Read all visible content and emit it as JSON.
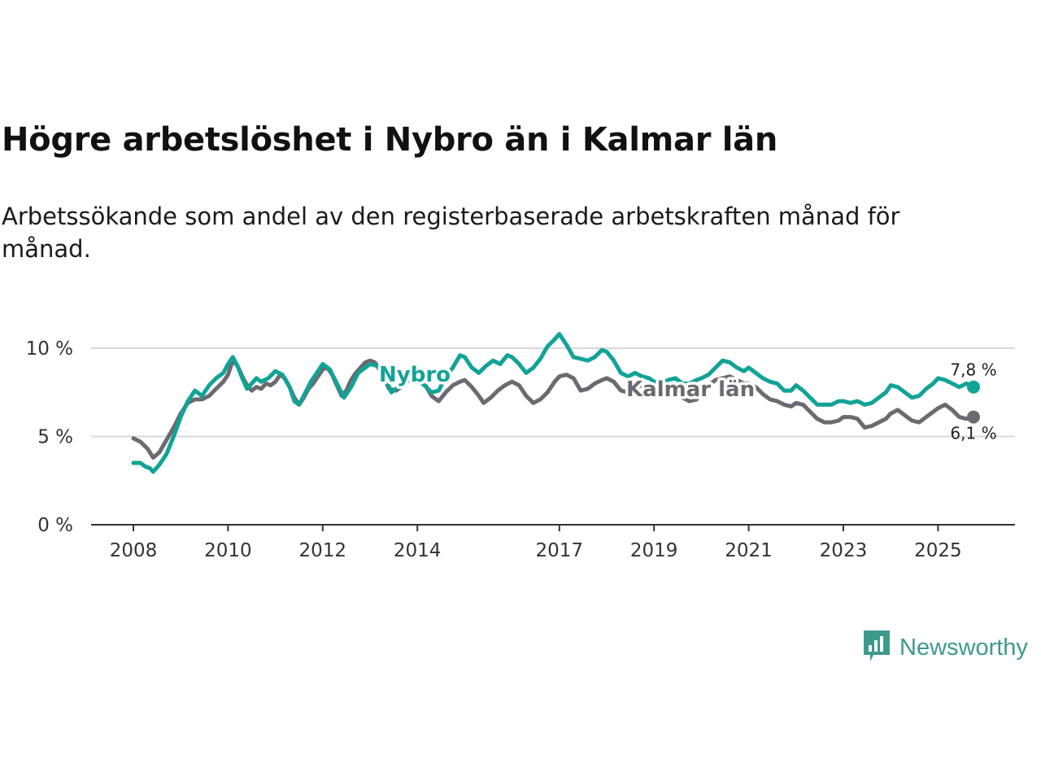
{
  "header": {
    "title": "Högre arbetslöshet i Nybro än i Kalmar län",
    "subtitle": "Arbetssökande som andel av den registerbaserade arbetskraften månad för månad."
  },
  "brand": {
    "name": "Newsworthy",
    "icon": "newsworthy-logo-icon",
    "color": "#3c9a8d"
  },
  "chart_data": {
    "type": "line",
    "title": "Högre arbetslöshet i Nybro än i Kalmar län",
    "xlabel": "",
    "ylabel": "",
    "xlim": [
      2008.0,
      2026.5
    ],
    "ylim": [
      0,
      10
    ],
    "y_ticks": [
      0,
      5,
      10
    ],
    "y_tick_labels": [
      "0 %",
      "5 %",
      "10 %"
    ],
    "x_ticks": [
      2008,
      2010,
      2012,
      2014,
      2017,
      2019,
      2021,
      2023,
      2025
    ],
    "x_tick_labels": [
      "2008",
      "2010",
      "2012",
      "2014",
      "2017",
      "2019",
      "2021",
      "2023",
      "2025"
    ],
    "grid": true,
    "series": [
      {
        "name": "Kalmar län",
        "color": "#6b6a70",
        "end_label": "6,1 %",
        "points": [
          [
            2008.0,
            4.9
          ],
          [
            2008.15,
            4.7
          ],
          [
            2008.3,
            4.3
          ],
          [
            2008.42,
            3.8
          ],
          [
            2008.55,
            4.1
          ],
          [
            2008.7,
            4.8
          ],
          [
            2008.85,
            5.5
          ],
          [
            2009.0,
            6.3
          ],
          [
            2009.15,
            6.9
          ],
          [
            2009.3,
            7.1
          ],
          [
            2009.45,
            7.1
          ],
          [
            2009.6,
            7.3
          ],
          [
            2009.75,
            7.7
          ],
          [
            2009.9,
            8.1
          ],
          [
            2010.0,
            8.5
          ],
          [
            2010.1,
            9.3
          ],
          [
            2010.2,
            9.0
          ],
          [
            2010.3,
            8.4
          ],
          [
            2010.4,
            7.9
          ],
          [
            2010.5,
            7.6
          ],
          [
            2010.6,
            7.8
          ],
          [
            2010.7,
            7.7
          ],
          [
            2010.8,
            8.0
          ],
          [
            2010.9,
            7.9
          ],
          [
            2011.0,
            8.1
          ],
          [
            2011.1,
            8.5
          ],
          [
            2011.2,
            8.3
          ],
          [
            2011.3,
            7.8
          ],
          [
            2011.4,
            7.2
          ],
          [
            2011.5,
            6.8
          ],
          [
            2011.6,
            7.2
          ],
          [
            2011.7,
            7.7
          ],
          [
            2011.8,
            8.0
          ],
          [
            2011.9,
            8.4
          ],
          [
            2012.0,
            8.8
          ],
          [
            2012.1,
            8.9
          ],
          [
            2012.2,
            8.5
          ],
          [
            2012.3,
            7.9
          ],
          [
            2012.4,
            7.3
          ],
          [
            2012.5,
            7.6
          ],
          [
            2012.6,
            8.2
          ],
          [
            2012.7,
            8.6
          ],
          [
            2012.8,
            8.9
          ],
          [
            2012.9,
            9.2
          ],
          [
            2013.0,
            9.3
          ],
          [
            2013.1,
            9.2
          ],
          [
            2013.25,
            8.6
          ],
          [
            2013.4,
            7.7
          ],
          [
            2013.55,
            7.6
          ],
          [
            2013.7,
            7.9
          ],
          [
            2013.85,
            8.3
          ],
          [
            2014.0,
            8.4
          ],
          [
            2014.15,
            8.0
          ],
          [
            2014.3,
            7.3
          ],
          [
            2014.45,
            7.0
          ],
          [
            2014.6,
            7.5
          ],
          [
            2014.75,
            7.9
          ],
          [
            2014.9,
            8.1
          ],
          [
            2015.0,
            8.2
          ],
          [
            2015.15,
            7.8
          ],
          [
            2015.3,
            7.3
          ],
          [
            2015.4,
            6.9
          ],
          [
            2015.55,
            7.2
          ],
          [
            2015.7,
            7.6
          ],
          [
            2015.85,
            7.9
          ],
          [
            2016.0,
            8.1
          ],
          [
            2016.15,
            7.9
          ],
          [
            2016.3,
            7.3
          ],
          [
            2016.45,
            6.9
          ],
          [
            2016.6,
            7.1
          ],
          [
            2016.75,
            7.5
          ],
          [
            2016.9,
            8.1
          ],
          [
            2017.0,
            8.4
          ],
          [
            2017.15,
            8.5
          ],
          [
            2017.3,
            8.3
          ],
          [
            2017.45,
            7.6
          ],
          [
            2017.6,
            7.7
          ],
          [
            2017.75,
            8.0
          ],
          [
            2017.9,
            8.2
          ],
          [
            2018.0,
            8.3
          ],
          [
            2018.15,
            8.1
          ],
          [
            2018.3,
            7.6
          ],
          [
            2018.45,
            7.5
          ],
          [
            2018.6,
            7.8
          ],
          [
            2018.75,
            7.9
          ],
          [
            2018.9,
            7.7
          ],
          [
            2019.0,
            7.4
          ],
          [
            2019.15,
            7.3
          ],
          [
            2019.3,
            7.5
          ],
          [
            2019.45,
            7.6
          ],
          [
            2019.6,
            7.2
          ],
          [
            2019.75,
            7.0
          ],
          [
            2019.9,
            7.1
          ],
          [
            2020.0,
            7.5
          ],
          [
            2020.15,
            7.9
          ],
          [
            2020.3,
            8.2
          ],
          [
            2020.45,
            8.3
          ],
          [
            2020.6,
            8.4
          ],
          [
            2020.75,
            8.2
          ],
          [
            2020.9,
            8.0
          ],
          [
            2021.0,
            8.0
          ],
          [
            2021.15,
            7.8
          ],
          [
            2021.3,
            7.4
          ],
          [
            2021.45,
            7.1
          ],
          [
            2021.6,
            7.0
          ],
          [
            2021.75,
            6.8
          ],
          [
            2021.9,
            6.7
          ],
          [
            2022.0,
            6.9
          ],
          [
            2022.15,
            6.8
          ],
          [
            2022.3,
            6.4
          ],
          [
            2022.45,
            6.0
          ],
          [
            2022.6,
            5.8
          ],
          [
            2022.75,
            5.8
          ],
          [
            2022.9,
            5.9
          ],
          [
            2023.0,
            6.1
          ],
          [
            2023.15,
            6.1
          ],
          [
            2023.3,
            6.0
          ],
          [
            2023.45,
            5.5
          ],
          [
            2023.6,
            5.6
          ],
          [
            2023.75,
            5.8
          ],
          [
            2023.9,
            6.0
          ],
          [
            2024.0,
            6.3
          ],
          [
            2024.15,
            6.5
          ],
          [
            2024.3,
            6.2
          ],
          [
            2024.45,
            5.9
          ],
          [
            2024.6,
            5.8
          ],
          [
            2024.75,
            6.1
          ],
          [
            2024.9,
            6.4
          ],
          [
            2025.0,
            6.6
          ],
          [
            2025.15,
            6.8
          ],
          [
            2025.3,
            6.5
          ],
          [
            2025.45,
            6.1
          ],
          [
            2025.6,
            6.0
          ],
          [
            2025.75,
            6.1
          ]
        ]
      },
      {
        "name": "Nybro",
        "color": "#11a396",
        "end_label": "7,8 %",
        "points": [
          [
            2008.0,
            3.5
          ],
          [
            2008.15,
            3.5
          ],
          [
            2008.25,
            3.3
          ],
          [
            2008.35,
            3.2
          ],
          [
            2008.42,
            3.0
          ],
          [
            2008.55,
            3.4
          ],
          [
            2008.7,
            4.0
          ],
          [
            2008.85,
            5.0
          ],
          [
            2009.0,
            6.1
          ],
          [
            2009.15,
            7.0
          ],
          [
            2009.3,
            7.6
          ],
          [
            2009.45,
            7.3
          ],
          [
            2009.6,
            7.9
          ],
          [
            2009.75,
            8.3
          ],
          [
            2009.9,
            8.6
          ],
          [
            2010.0,
            9.1
          ],
          [
            2010.1,
            9.5
          ],
          [
            2010.2,
            9.0
          ],
          [
            2010.3,
            8.3
          ],
          [
            2010.4,
            7.7
          ],
          [
            2010.5,
            8.0
          ],
          [
            2010.6,
            8.3
          ],
          [
            2010.7,
            8.1
          ],
          [
            2010.85,
            8.3
          ],
          [
            2011.0,
            8.7
          ],
          [
            2011.15,
            8.5
          ],
          [
            2011.3,
            7.8
          ],
          [
            2011.4,
            7.0
          ],
          [
            2011.5,
            6.8
          ],
          [
            2011.6,
            7.3
          ],
          [
            2011.75,
            8.1
          ],
          [
            2011.9,
            8.7
          ],
          [
            2012.0,
            9.1
          ],
          [
            2012.15,
            8.8
          ],
          [
            2012.3,
            8.0
          ],
          [
            2012.45,
            7.2
          ],
          [
            2012.6,
            7.8
          ],
          [
            2012.75,
            8.6
          ],
          [
            2012.9,
            8.9
          ],
          [
            2013.0,
            9.1
          ],
          [
            2013.15,
            9.0
          ],
          [
            2013.3,
            8.5
          ],
          [
            2013.45,
            7.5
          ],
          [
            2013.6,
            7.8
          ],
          [
            2013.75,
            8.2
          ],
          [
            2013.9,
            8.4
          ],
          [
            2014.0,
            8.2
          ],
          [
            2014.15,
            7.9
          ],
          [
            2014.3,
            7.5
          ],
          [
            2014.45,
            7.6
          ],
          [
            2014.6,
            8.4
          ],
          [
            2014.75,
            8.9
          ],
          [
            2014.9,
            9.6
          ],
          [
            2015.0,
            9.5
          ],
          [
            2015.15,
            8.9
          ],
          [
            2015.3,
            8.6
          ],
          [
            2015.45,
            9.0
          ],
          [
            2015.6,
            9.3
          ],
          [
            2015.75,
            9.1
          ],
          [
            2015.9,
            9.6
          ],
          [
            2016.0,
            9.5
          ],
          [
            2016.15,
            9.1
          ],
          [
            2016.3,
            8.6
          ],
          [
            2016.45,
            8.9
          ],
          [
            2016.6,
            9.4
          ],
          [
            2016.75,
            10.1
          ],
          [
            2016.9,
            10.5
          ],
          [
            2017.0,
            10.8
          ],
          [
            2017.15,
            10.2
          ],
          [
            2017.3,
            9.5
          ],
          [
            2017.45,
            9.4
          ],
          [
            2017.6,
            9.3
          ],
          [
            2017.75,
            9.5
          ],
          [
            2017.9,
            9.9
          ],
          [
            2018.0,
            9.8
          ],
          [
            2018.15,
            9.3
          ],
          [
            2018.3,
            8.6
          ],
          [
            2018.45,
            8.4
          ],
          [
            2018.6,
            8.6
          ],
          [
            2018.75,
            8.4
          ],
          [
            2018.9,
            8.3
          ],
          [
            2019.0,
            8.1
          ],
          [
            2019.15,
            8.0
          ],
          [
            2019.3,
            8.2
          ],
          [
            2019.45,
            8.3
          ],
          [
            2019.6,
            8.0
          ],
          [
            2019.75,
            8.0
          ],
          [
            2019.9,
            8.2
          ],
          [
            2020.0,
            8.3
          ],
          [
            2020.15,
            8.5
          ],
          [
            2020.3,
            8.9
          ],
          [
            2020.45,
            9.3
          ],
          [
            2020.6,
            9.2
          ],
          [
            2020.75,
            8.9
          ],
          [
            2020.9,
            8.7
          ],
          [
            2021.0,
            8.9
          ],
          [
            2021.15,
            8.6
          ],
          [
            2021.3,
            8.3
          ],
          [
            2021.45,
            8.1
          ],
          [
            2021.6,
            8.0
          ],
          [
            2021.75,
            7.6
          ],
          [
            2021.9,
            7.6
          ],
          [
            2022.0,
            7.9
          ],
          [
            2022.15,
            7.6
          ],
          [
            2022.3,
            7.2
          ],
          [
            2022.45,
            6.8
          ],
          [
            2022.6,
            6.8
          ],
          [
            2022.75,
            6.8
          ],
          [
            2022.9,
            7.0
          ],
          [
            2023.0,
            7.0
          ],
          [
            2023.15,
            6.9
          ],
          [
            2023.3,
            7.0
          ],
          [
            2023.45,
            6.8
          ],
          [
            2023.6,
            6.9
          ],
          [
            2023.75,
            7.2
          ],
          [
            2023.9,
            7.5
          ],
          [
            2024.0,
            7.9
          ],
          [
            2024.15,
            7.8
          ],
          [
            2024.3,
            7.5
          ],
          [
            2024.45,
            7.2
          ],
          [
            2024.6,
            7.3
          ],
          [
            2024.75,
            7.7
          ],
          [
            2024.9,
            8.0
          ],
          [
            2025.0,
            8.3
          ],
          [
            2025.15,
            8.2
          ],
          [
            2025.3,
            8.0
          ],
          [
            2025.45,
            7.8
          ],
          [
            2025.6,
            8.0
          ],
          [
            2025.75,
            7.8
          ]
        ]
      }
    ]
  }
}
